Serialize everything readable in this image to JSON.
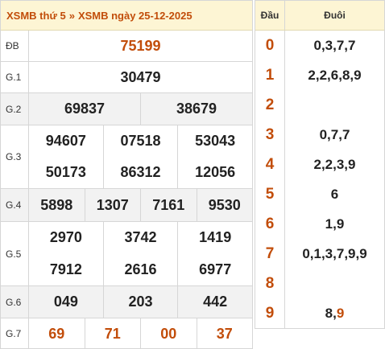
{
  "header": {
    "link1": "XSMB thứ 5",
    "separator": "»",
    "link2": "XSMB ngày 25-12-2025"
  },
  "prizes": {
    "db": {
      "label": "ĐB",
      "numbers": [
        "75199"
      ]
    },
    "g1": {
      "label": "G.1",
      "numbers": [
        "30479"
      ]
    },
    "g2": {
      "label": "G.2",
      "numbers": [
        "69837",
        "38679"
      ]
    },
    "g3": {
      "label": "G.3",
      "numbers": [
        "94607",
        "07518",
        "53043",
        "50173",
        "86312",
        "12056"
      ]
    },
    "g4": {
      "label": "G.4",
      "numbers": [
        "5898",
        "1307",
        "7161",
        "9530"
      ]
    },
    "g5": {
      "label": "G.5",
      "numbers": [
        "2970",
        "3742",
        "1419",
        "7912",
        "2616",
        "6977"
      ]
    },
    "g6": {
      "label": "G.6",
      "numbers": [
        "049",
        "203",
        "442"
      ]
    },
    "g7": {
      "label": "G.7",
      "numbers": [
        "69",
        "71",
        "00",
        "37"
      ]
    }
  },
  "dau_duoi": {
    "head_dau": "Đầu",
    "head_duoi": "Đuôi",
    "rows": [
      {
        "dau": "0",
        "duoi": "0,3,7,7"
      },
      {
        "dau": "1",
        "duoi": "2,2,6,8,9"
      },
      {
        "dau": "2",
        "duoi": ""
      },
      {
        "dau": "3",
        "duoi": "0,7,7"
      },
      {
        "dau": "4",
        "duoi": "2,2,3,9"
      },
      {
        "dau": "5",
        "duoi": "6"
      },
      {
        "dau": "6",
        "duoi": "1,9"
      },
      {
        "dau": "7",
        "duoi": "0,1,3,7,9,9"
      },
      {
        "dau": "8",
        "duoi": ""
      },
      {
        "dau": "9",
        "duoi_prefix": "8,",
        "duoi_highlight": "9"
      }
    ]
  },
  "colors": {
    "accent": "#c24d0a",
    "header_bg": "#fdf5d4",
    "alt_row_bg": "#f2f2f2"
  }
}
